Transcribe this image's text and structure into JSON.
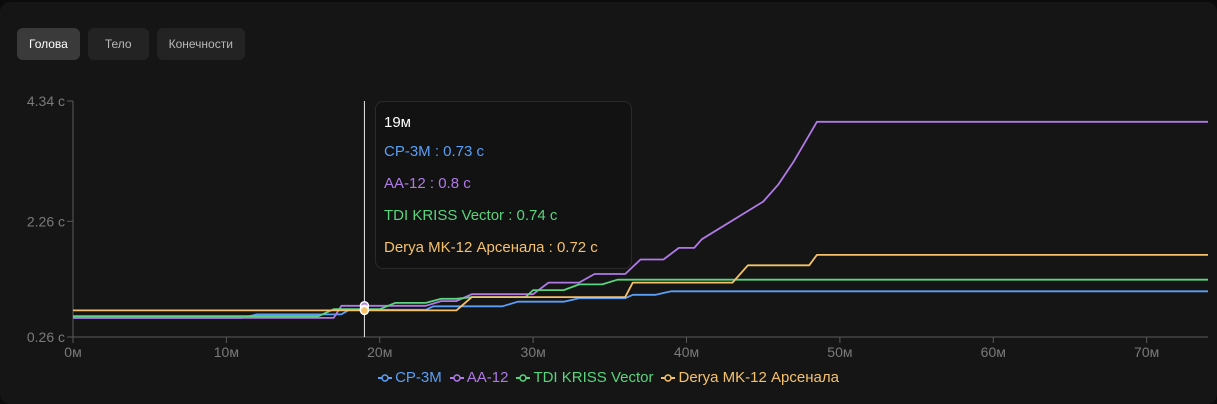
{
  "tabs": [
    {
      "label": "Голова",
      "active": true
    },
    {
      "label": "Тело",
      "active": false
    },
    {
      "label": "Конечности",
      "active": false
    }
  ],
  "tooltip": {
    "title": "19м",
    "rows": [
      {
        "text": "CP-3M : 0.73 с",
        "color": "#5b9ff5"
      },
      {
        "text": "AA-12 : 0.8 с",
        "color": "#b07ae6"
      },
      {
        "text": "TDI KRISS Vector : 0.74 с",
        "color": "#5ad47e"
      },
      {
        "text": "Derya MK-12 Арсенала : 0.72 с",
        "color": "#f5c26b"
      }
    ]
  },
  "chart_data": {
    "type": "line",
    "x_ticks": [
      "0м",
      "10м",
      "20м",
      "30м",
      "40м",
      "50м",
      "60м",
      "70м"
    ],
    "y_ticks": [
      "0.26 с",
      "2.26 с",
      "4.34 с"
    ],
    "xlim": [
      0,
      74
    ],
    "ylim": [
      0.26,
      4.34
    ],
    "crosshair_x": 19,
    "series": [
      {
        "name": "CP-3M",
        "color": "#5b9ff5",
        "points": [
          [
            0,
            0.59
          ],
          [
            11,
            0.59
          ],
          [
            12,
            0.65
          ],
          [
            17.5,
            0.65
          ],
          [
            18,
            0.73
          ],
          [
            23,
            0.73
          ],
          [
            23.5,
            0.79
          ],
          [
            28,
            0.79
          ],
          [
            29,
            0.87
          ],
          [
            32,
            0.87
          ],
          [
            33,
            0.93
          ],
          [
            36,
            0.93
          ],
          [
            36.5,
            0.99
          ],
          [
            38,
            0.99
          ],
          [
            39,
            1.05
          ],
          [
            74,
            1.05
          ]
        ]
      },
      {
        "name": "AA-12",
        "color": "#b07ae6",
        "points": [
          [
            0,
            0.59
          ],
          [
            17,
            0.59
          ],
          [
            17.5,
            0.8
          ],
          [
            23,
            0.8
          ],
          [
            24,
            0.88
          ],
          [
            25,
            0.88
          ],
          [
            26,
            1.0
          ],
          [
            30,
            1.0
          ],
          [
            31,
            1.2
          ],
          [
            33,
            1.2
          ],
          [
            34,
            1.35
          ],
          [
            36,
            1.35
          ],
          [
            37,
            1.6
          ],
          [
            38.5,
            1.6
          ],
          [
            39.5,
            1.8
          ],
          [
            40.5,
            1.8
          ],
          [
            41,
            1.95
          ],
          [
            45,
            2.6
          ],
          [
            46,
            2.9
          ],
          [
            47,
            3.3
          ],
          [
            48,
            3.75
          ],
          [
            48.5,
            3.98
          ],
          [
            74,
            3.98
          ]
        ]
      },
      {
        "name": "TDI KRISS Vector",
        "color": "#5ad47e",
        "points": [
          [
            0,
            0.62
          ],
          [
            16,
            0.62
          ],
          [
            17,
            0.74
          ],
          [
            20,
            0.74
          ],
          [
            21,
            0.85
          ],
          [
            23,
            0.85
          ],
          [
            24,
            0.92
          ],
          [
            25,
            0.92
          ],
          [
            26,
            0.95
          ],
          [
            29.5,
            0.95
          ],
          [
            30,
            1.07
          ],
          [
            32,
            1.07
          ],
          [
            33,
            1.17
          ],
          [
            34.5,
            1.17
          ],
          [
            35.5,
            1.25
          ],
          [
            74,
            1.25
          ]
        ]
      },
      {
        "name": "Derya MK-12 Арсенала",
        "color": "#f5c26b",
        "points": [
          [
            0,
            0.72
          ],
          [
            25,
            0.72
          ],
          [
            26,
            0.95
          ],
          [
            36,
            0.95
          ],
          [
            36.5,
            1.2
          ],
          [
            43,
            1.2
          ],
          [
            44,
            1.5
          ],
          [
            48,
            1.5
          ],
          [
            48.5,
            1.68
          ],
          [
            74,
            1.68
          ]
        ]
      }
    ]
  }
}
